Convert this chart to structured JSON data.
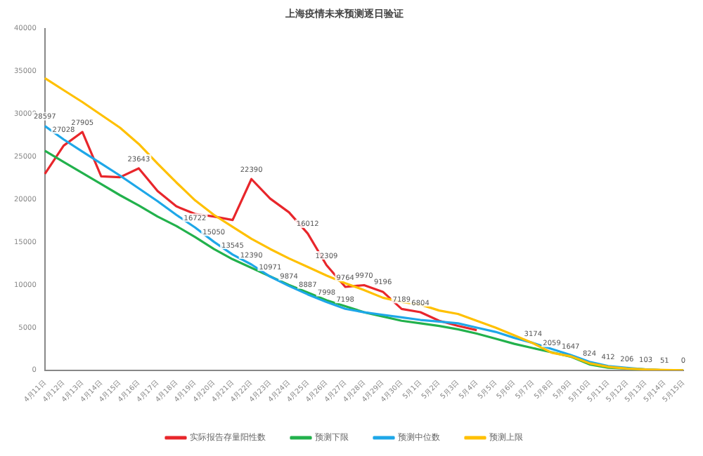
{
  "chart_data": {
    "type": "line",
    "title": "上海疫情未来预测逐日验证",
    "categories": [
      "4月11日",
      "4月12日",
      "4月13日",
      "4月14日",
      "4月15日",
      "4月16日",
      "4月17日",
      "4月18日",
      "4月19日",
      "4月20日",
      "4月21日",
      "4月22日",
      "4月23日",
      "4月24日",
      "4月25日",
      "4月26日",
      "4月27日",
      "4月28日",
      "4月29日",
      "4月30日",
      "5月1日",
      "5月2日",
      "5月3日",
      "5月4日",
      "5月5日",
      "5月6日",
      "5月7日",
      "5月8日",
      "5月9日",
      "5月10日",
      "5月11日",
      "5月12日",
      "5月13日",
      "5月14日",
      "5月15日"
    ],
    "series": [
      {
        "name": "实际报告存量阳性数",
        "color": "#e8262b",
        "values": [
          23000,
          26300,
          27905,
          22700,
          22600,
          23643,
          21000,
          19200,
          18300,
          18000,
          17600,
          22390,
          20100,
          18500,
          16012,
          12309,
          9764,
          9970,
          9196,
          7189,
          6804,
          5800,
          5200,
          4700,
          null,
          null,
          null,
          null,
          null,
          null,
          null,
          null,
          null,
          null,
          null
        ],
        "value_labels": [
          null,
          null,
          "27905",
          null,
          null,
          "23643",
          null,
          null,
          null,
          null,
          null,
          "22390",
          null,
          null,
          "16012",
          "12309",
          "9764",
          "9970",
          "9196",
          "7189",
          "6804",
          null,
          null,
          null,
          null,
          null,
          null,
          null,
          null,
          null,
          null,
          null,
          null,
          null,
          null
        ]
      },
      {
        "name": "预测下限",
        "color": "#22b14c",
        "values": [
          25700,
          24400,
          23100,
          21800,
          20500,
          19300,
          18000,
          16900,
          15600,
          14200,
          13000,
          12000,
          11000,
          10000,
          9100,
          8200,
          7500,
          6800,
          6300,
          5800,
          5500,
          5200,
          4800,
          4300,
          3700,
          3100,
          2600,
          2100,
          1600,
          700,
          300,
          200,
          100,
          0,
          0
        ]
      },
      {
        "name": "预测中位数",
        "color": "#1ea7e8",
        "values": [
          28597,
          27028,
          25600,
          24200,
          22800,
          21300,
          19800,
          18200,
          16722,
          15050,
          13545,
          12390,
          10971,
          9874,
          8887,
          7998,
          7198,
          6800,
          6500,
          6200,
          5900,
          5700,
          5500,
          5000,
          4500,
          3800,
          3200,
          2500,
          1800,
          1000,
          500,
          300,
          100,
          0,
          0
        ],
        "value_labels": [
          "28597",
          "27028",
          null,
          null,
          null,
          null,
          null,
          null,
          "16722",
          "15050",
          "13545",
          "12390",
          "10971",
          "9874",
          "8887",
          "7998",
          "7198",
          null,
          null,
          null,
          null,
          null,
          null,
          null,
          null,
          null,
          null,
          null,
          null,
          null,
          null,
          null,
          null,
          null,
          null
        ]
      },
      {
        "name": "预测上限",
        "color": "#ffc000",
        "values": [
          34200,
          32800,
          31400,
          29900,
          28400,
          26500,
          24200,
          22000,
          19900,
          18200,
          16800,
          15400,
          14200,
          13100,
          12100,
          11100,
          10200,
          9400,
          8500,
          8000,
          7700,
          7000,
          6600,
          5800,
          5000,
          4100,
          3174,
          2059,
          1647,
          824,
          412,
          206,
          103,
          51,
          0
        ],
        "value_labels": [
          null,
          null,
          null,
          null,
          null,
          null,
          null,
          null,
          null,
          null,
          null,
          null,
          null,
          null,
          null,
          null,
          null,
          null,
          null,
          null,
          null,
          null,
          null,
          null,
          null,
          null,
          "3174",
          "2059",
          "1647",
          "824",
          "412",
          "206",
          "103",
          "51",
          "0"
        ]
      }
    ],
    "ylim": [
      0,
      40000
    ],
    "yticks": [
      0,
      5000,
      10000,
      15000,
      20000,
      25000,
      30000,
      35000,
      40000
    ],
    "grid": false,
    "legend": "bottom",
    "marker": "none",
    "line_style": "solid"
  }
}
